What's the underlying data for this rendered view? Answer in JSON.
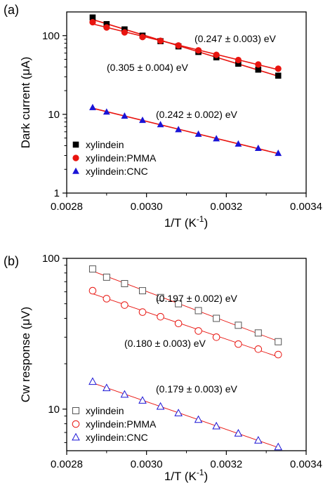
{
  "panels": [
    {
      "panel_label": "(a)",
      "ylabel_pre": "Dark current (",
      "ylabel_unit": "μA",
      "ylabel_post": ")",
      "xlabel_base": "1/T (K",
      "xlabel_sup": "-1",
      "xlabel_tail": ")",
      "legend": [
        {
          "label": "xylindein",
          "color": "#000000",
          "marker": "square",
          "filled": true
        },
        {
          "label": "xylindein:PMMA",
          "color": "#e8140f",
          "marker": "circle",
          "filled": true
        },
        {
          "label": "xylindein:CNC",
          "color": "#1a14d6",
          "marker": "triangle",
          "filled": true
        }
      ],
      "annotations": [
        "(0.247 ± 0.003) eV",
        "(0.305 ± 0.004) eV",
        "(0.242 ± 0.002) eV"
      ]
    },
    {
      "panel_label": "(b)",
      "ylabel_pre": "Cw response (",
      "ylabel_unit": "μV",
      "ylabel_post": ")",
      "xlabel_base": "1/T (K",
      "xlabel_sup": "-1",
      "xlabel_tail": ")",
      "legend": [
        {
          "label": "xylindein",
          "color": "#555555",
          "marker": "square",
          "filled": false
        },
        {
          "label": "xylindein:PMMA",
          "color": "#e8140f",
          "marker": "circle",
          "filled": false
        },
        {
          "label": "xylindein:CNC",
          "color": "#1a14d6",
          "marker": "triangle",
          "filled": false
        }
      ],
      "annotations": [
        "(0.197 ± 0.002) eV",
        "(0.180 ± 0.003) eV",
        "(0.179 ± 0.003) eV"
      ]
    }
  ],
  "chart_data": [
    {
      "type": "scatter",
      "title": "",
      "xlabel": "1/T (K^-1)",
      "ylabel": "Dark current (μA)",
      "xlim": [
        0.0028,
        0.0034
      ],
      "ylim": [
        1,
        200
      ],
      "yscale": "log",
      "x_ticks": [
        "0.0028",
        "0.0030",
        "0.0032",
        "0.0034"
      ],
      "y_ticks": [
        "1",
        "10",
        "100"
      ],
      "fit_line_color": "#e8140f",
      "series": [
        {
          "name": "xylindein",
          "color": "#000000",
          "marker": "square",
          "filled": true,
          "x": [
            0.002865,
            0.0029,
            0.002945,
            0.00299,
            0.003035,
            0.00308,
            0.00313,
            0.003175,
            0.00323,
            0.00328,
            0.00333
          ],
          "y": [
            170,
            140,
            120,
            100,
            85,
            73,
            62,
            53,
            44,
            37,
            31
          ]
        },
        {
          "name": "xylindein:PMMA",
          "color": "#e8140f",
          "marker": "circle",
          "filled": true,
          "x": [
            0.002865,
            0.0029,
            0.002945,
            0.00299,
            0.003035,
            0.00308,
            0.00313,
            0.003175,
            0.00323,
            0.00328,
            0.00333
          ],
          "y": [
            148,
            127,
            110,
            96,
            86,
            75,
            65,
            57,
            49,
            43,
            38
          ]
        },
        {
          "name": "xylindein:CNC",
          "color": "#1a14d6",
          "marker": "triangle",
          "filled": true,
          "x": [
            0.002865,
            0.0029,
            0.002945,
            0.00299,
            0.003035,
            0.00308,
            0.00313,
            0.003175,
            0.00323,
            0.00328,
            0.00333
          ],
          "y": [
            12.2,
            10.7,
            9.5,
            8.4,
            7.4,
            6.4,
            5.6,
            4.9,
            4.2,
            3.7,
            3.2
          ]
        }
      ]
    },
    {
      "type": "scatter",
      "title": "",
      "xlabel": "1/T (K^-1)",
      "ylabel": "Cw response (μV)",
      "xlim": [
        0.0028,
        0.0034
      ],
      "ylim": [
        5.3,
        100
      ],
      "yscale": "log",
      "x_ticks": [
        "0.0028",
        "0.0030",
        "0.0032",
        "0.0034"
      ],
      "y_ticks": [
        "10",
        "100"
      ],
      "fit_line_color": "#e8140f",
      "series": [
        {
          "name": "xylindein",
          "color": "#555555",
          "marker": "square",
          "filled": false,
          "x": [
            0.002865,
            0.0029,
            0.002945,
            0.00299,
            0.003035,
            0.00308,
            0.00313,
            0.003175,
            0.00323,
            0.00328,
            0.00333
          ],
          "y": [
            85,
            75,
            68,
            61,
            55,
            50,
            45,
            40,
            36,
            32,
            28
          ]
        },
        {
          "name": "xylindein:PMMA",
          "color": "#e8140f",
          "marker": "circle",
          "filled": false,
          "x": [
            0.002865,
            0.0029,
            0.002945,
            0.00299,
            0.003035,
            0.00308,
            0.00313,
            0.003175,
            0.00323,
            0.00328,
            0.00333
          ],
          "y": [
            61,
            54,
            49,
            44,
            41,
            37,
            33,
            30,
            27,
            25,
            23
          ]
        },
        {
          "name": "xylindein:CNC",
          "color": "#1a14d6",
          "marker": "triangle",
          "filled": false,
          "x": [
            0.002865,
            0.0029,
            0.002945,
            0.00299,
            0.003035,
            0.00308,
            0.00313,
            0.003175,
            0.00323,
            0.00328,
            0.00333
          ],
          "y": [
            15.2,
            13.8,
            12.5,
            11.4,
            10.4,
            9.4,
            8.5,
            7.7,
            6.9,
            6.2,
            5.6
          ]
        }
      ]
    }
  ]
}
